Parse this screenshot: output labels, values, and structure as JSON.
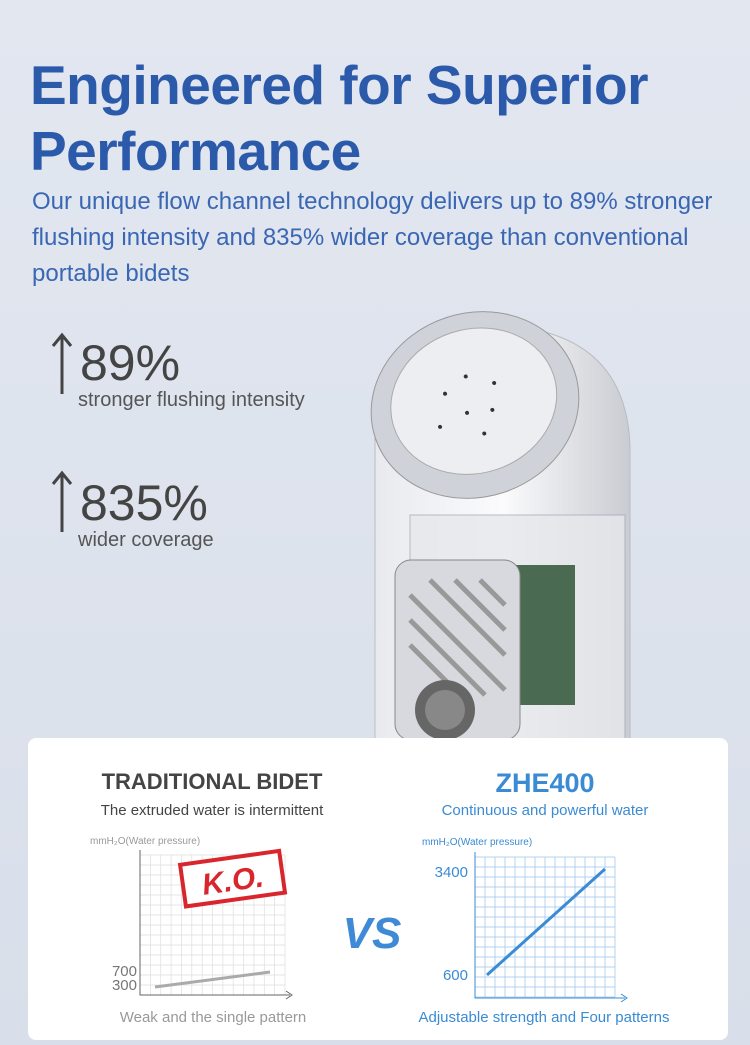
{
  "header": {
    "title": "Engineered for Superior Performance",
    "subtitle": "Our unique flow channel technology delivers up to 89% stronger flushing intensity and 835% wider coverage than conventional portable bidets"
  },
  "stats": [
    {
      "value": "89%",
      "label": "stronger flushing intensity"
    },
    {
      "value": "835%",
      "label": "wider coverage"
    }
  ],
  "comparison": {
    "left": {
      "title": "TRADITIONAL BIDET",
      "subtitle": "The extruded water is intermittent",
      "axis_label": "mmH₂O(Water pressure)",
      "stamp": "K.O.",
      "ticks": [
        700,
        300
      ],
      "caption": "Weak and the single pattern"
    },
    "vs": "VS",
    "right": {
      "title": "ZHE400",
      "subtitle": "Continuous and powerful water",
      "axis_label": "mmH₂O(Water pressure)",
      "ticks": [
        3400,
        600
      ],
      "caption": "Adjustable strength and Four patterns"
    }
  }
}
